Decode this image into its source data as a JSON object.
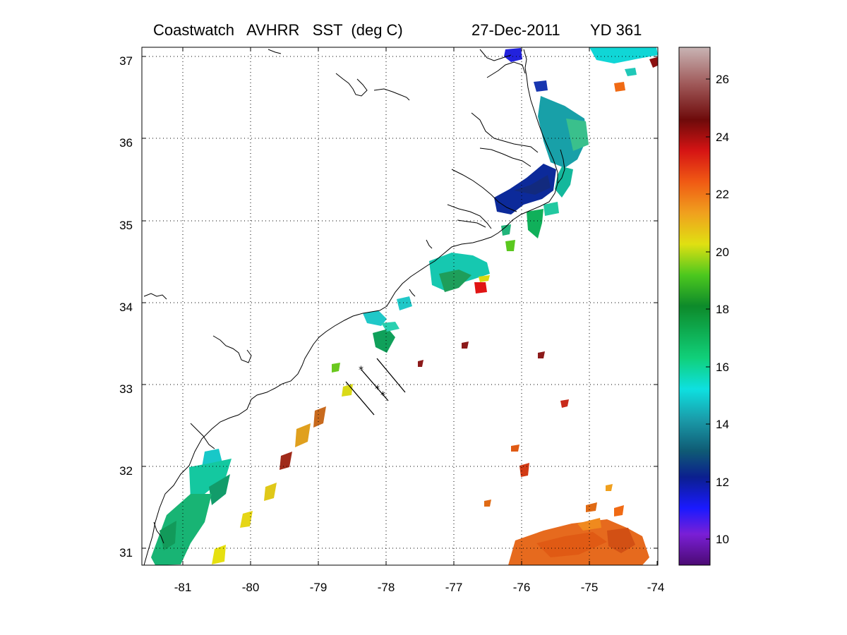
{
  "title": {
    "product": "Coastwatch   AVHRR   SST  (deg C)",
    "date": "27-Dec-2011",
    "yearday": "YD 361"
  },
  "map": {
    "lon_range": [
      -81.6,
      -74
    ],
    "lat_range": [
      30.8,
      37.1
    ],
    "lon_ticks": [
      "-81",
      "-80",
      "-79",
      "-78",
      "-77",
      "-76",
      "-75",
      "-74"
    ],
    "lat_ticks": [
      "37",
      "36",
      "35",
      "34",
      "33",
      "32",
      "31"
    ],
    "grid": "dotted"
  },
  "colorbar": {
    "range": [
      9,
      27
    ],
    "ticks": [
      "26",
      "24",
      "22",
      "20",
      "18",
      "16",
      "14",
      "12",
      "10"
    ],
    "colors": [
      "#4b0a73",
      "#7a1fd6",
      "#1a1aff",
      "#0b1f8f",
      "#0f5a74",
      "#1a9aa8",
      "#0ee0e0",
      "#10d07a",
      "#0d8a2a",
      "#4cc81e",
      "#e0e012",
      "#f0a01e",
      "#f05a14",
      "#d61414",
      "#6e0a0a",
      "#a05a5a",
      "#c8b4b4"
    ]
  }
}
